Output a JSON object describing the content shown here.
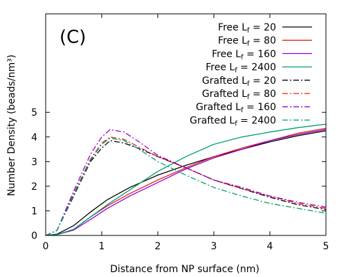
{
  "chart_data": {
    "type": "line",
    "panel_label": "(C)",
    "xlabel": "Distance from NP surface (nm)",
    "ylabel": "Number Density (beads/nm³)",
    "xlim": [
      0,
      5
    ],
    "ylim": [
      0,
      9
    ],
    "xticks": [
      "0",
      "1",
      "2",
      "3",
      "4",
      "5"
    ],
    "yticks": [
      "0",
      "1",
      "2",
      "3",
      "4",
      "5"
    ],
    "grid": false,
    "legend_position": "top-right",
    "series": [
      {
        "name": "Free L_f = 20",
        "sub": "f",
        "prefix": "Free L",
        "suffix": " = 20",
        "style": "solid",
        "color": "#000000",
        "x": [
          0,
          0.2,
          0.5,
          0.8,
          1.1,
          1.5,
          2.0,
          2.5,
          3.0,
          3.5,
          4.0,
          4.5,
          5.0
        ],
        "y": [
          0,
          0.05,
          0.4,
          0.95,
          1.45,
          1.95,
          2.45,
          2.85,
          3.2,
          3.5,
          3.8,
          4.05,
          4.25
        ]
      },
      {
        "name": "Free L_f = 80",
        "sub": "f",
        "prefix": "Free L",
        "suffix": " = 80",
        "style": "solid",
        "color": "#e0201c",
        "x": [
          0,
          0.2,
          0.5,
          0.8,
          1.1,
          1.5,
          2.0,
          2.5,
          3.0,
          3.5,
          4.0,
          4.5,
          5.0
        ],
        "y": [
          0,
          0.03,
          0.25,
          0.75,
          1.2,
          1.7,
          2.25,
          2.75,
          3.2,
          3.55,
          3.85,
          4.15,
          4.35
        ]
      },
      {
        "name": "Free L_f = 160",
        "sub": "f",
        "prefix": "Free L",
        "suffix": " = 160",
        "style": "solid",
        "color": "#9400d3",
        "x": [
          0,
          0.2,
          0.5,
          0.8,
          1.1,
          1.5,
          2.0,
          2.5,
          3.0,
          3.5,
          4.0,
          4.5,
          5.0
        ],
        "y": [
          0,
          0.03,
          0.22,
          0.65,
          1.1,
          1.6,
          2.15,
          2.7,
          3.15,
          3.5,
          3.85,
          4.1,
          4.3
        ]
      },
      {
        "name": "Free L_f = 2400",
        "sub": "f",
        "prefix": "Free L",
        "suffix": " = 2400",
        "style": "solid",
        "color": "#009e73",
        "x": [
          0,
          0.2,
          0.5,
          0.8,
          1.1,
          1.5,
          2.0,
          2.5,
          3.0,
          3.5,
          4.0,
          4.5,
          5.0
        ],
        "y": [
          0,
          0.03,
          0.25,
          0.75,
          1.25,
          1.85,
          2.6,
          3.2,
          3.7,
          4.0,
          4.2,
          4.38,
          4.52
        ]
      },
      {
        "name": "Grafted L_f = 20",
        "sub": "f",
        "prefix": "Grafted L",
        "suffix": " = 20",
        "style": "dashdot",
        "color": "#000000",
        "x": [
          0,
          0.2,
          0.5,
          0.8,
          1.0,
          1.15,
          1.4,
          1.7,
          2.0,
          2.5,
          3.0,
          3.5,
          4.0,
          4.5,
          5.0
        ],
        "y": [
          0,
          0.2,
          1.6,
          3.0,
          3.55,
          3.85,
          3.75,
          3.5,
          3.2,
          2.75,
          2.25,
          1.9,
          1.55,
          1.25,
          1.05
        ]
      },
      {
        "name": "Grafted L_f = 80",
        "sub": "f",
        "prefix": "Grafted L",
        "suffix": " = 80",
        "style": "dashdot",
        "color": "#e0201c",
        "x": [
          0,
          0.2,
          0.5,
          0.8,
          1.0,
          1.15,
          1.4,
          1.7,
          2.0,
          2.5,
          3.0,
          3.5,
          4.0,
          4.5,
          5.0
        ],
        "y": [
          0,
          0.2,
          1.7,
          3.1,
          3.75,
          4.0,
          3.9,
          3.55,
          3.2,
          2.75,
          2.25,
          1.9,
          1.6,
          1.3,
          1.1
        ]
      },
      {
        "name": "Grafted L_f = 160",
        "sub": "f",
        "prefix": "Grafted L",
        "suffix": " = 160",
        "style": "dashdot",
        "color": "#9400d3",
        "x": [
          0,
          0.2,
          0.5,
          0.8,
          1.0,
          1.15,
          1.4,
          1.7,
          2.0,
          2.5,
          3.0,
          3.5,
          4.0,
          4.5,
          5.0
        ],
        "y": [
          0,
          0.2,
          1.8,
          3.3,
          4.0,
          4.3,
          4.2,
          3.75,
          3.25,
          2.75,
          2.25,
          1.95,
          1.6,
          1.35,
          1.15
        ]
      },
      {
        "name": "Grafted L_f = 2400",
        "sub": "f",
        "prefix": "Grafted L",
        "suffix": " = 2400",
        "style": "dashdot",
        "color": "#009e73",
        "x": [
          0,
          0.2,
          0.5,
          0.8,
          1.0,
          1.15,
          1.4,
          1.7,
          2.0,
          2.5,
          3.0,
          3.5,
          4.0,
          4.5,
          5.0
        ],
        "y": [
          0,
          0.2,
          1.65,
          3.05,
          3.7,
          3.95,
          3.85,
          3.45,
          3.0,
          2.45,
          1.95,
          1.6,
          1.3,
          1.1,
          0.9
        ]
      }
    ]
  }
}
